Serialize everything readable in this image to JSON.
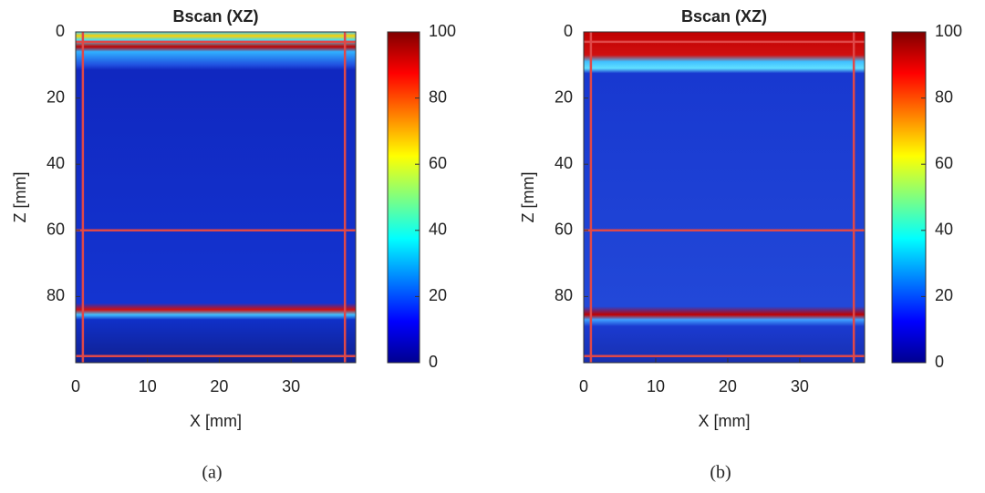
{
  "chart_data": [
    {
      "type": "heatmap",
      "title": "Bscan (XZ)",
      "xlabel": "X [mm]",
      "ylabel": "Z [mm]",
      "xlim": [
        0,
        39
      ],
      "xticks": [
        0,
        10,
        20,
        30
      ],
      "ylim": [
        0,
        100
      ],
      "yticks": [
        0,
        20,
        40,
        60,
        80
      ],
      "y_reversed": true,
      "colormap": "jet",
      "clim": [
        0,
        100
      ],
      "cticks": [
        0,
        20,
        40,
        60,
        80,
        100
      ],
      "vlines": [
        1,
        37.5
      ],
      "hlines": [
        3,
        60,
        98
      ],
      "line_color": "#e04848",
      "caption": "(a)"
    },
    {
      "type": "heatmap",
      "title": "Bscan (XZ)",
      "xlabel": "X [mm]",
      "ylabel": "Z [mm]",
      "xlim": [
        0,
        39
      ],
      "xticks": [
        0,
        10,
        20,
        30
      ],
      "ylim": [
        0,
        100
      ],
      "yticks": [
        0,
        20,
        40,
        60,
        80
      ],
      "y_reversed": true,
      "colormap": "jet",
      "clim": [
        0,
        100
      ],
      "cticks": [
        0,
        20,
        40,
        60,
        80,
        100
      ],
      "vlines": [
        1,
        37.5
      ],
      "hlines": [
        3,
        60,
        98
      ],
      "line_color": "#e04848",
      "caption": "(b)"
    }
  ]
}
